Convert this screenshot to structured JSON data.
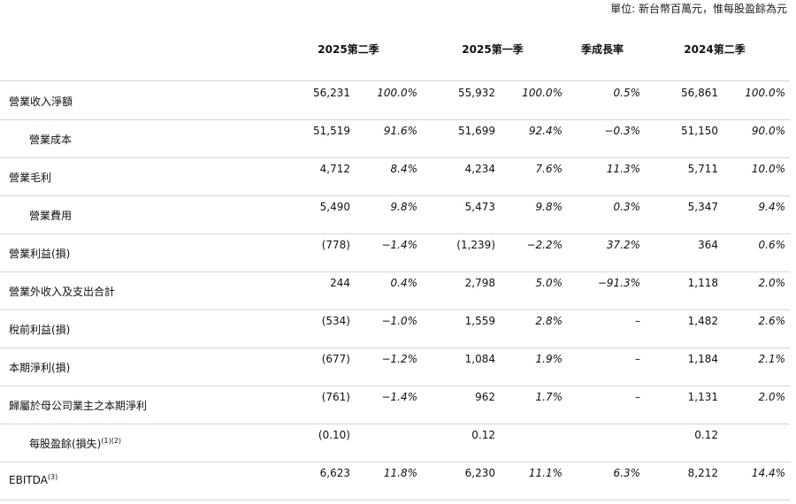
{
  "unit_note": "單位: 新台幣百萬元，惟每股盈餘為元",
  "columns": {
    "q2_2025": "2025第二季",
    "q1_2025": "2025第一季",
    "qoq": "季成長率",
    "q2_2024": "2024第二季"
  },
  "rows": [
    {
      "label": "營業收入淨額",
      "sup": "",
      "indent": 0,
      "q2_2025": "56,231",
      "q2_2025_pct": "100.0%",
      "q1_2025": "55,932",
      "q1_2025_pct": "100.0%",
      "qoq": "0.5%",
      "q2_2024": "56,861",
      "q2_2024_pct": "100.0%"
    },
    {
      "label": "營業成本",
      "sup": "",
      "indent": 1,
      "q2_2025": "51,519",
      "q2_2025_pct": "91.6%",
      "q1_2025": "51,699",
      "q1_2025_pct": "92.4%",
      "qoq": "−0.3%",
      "q2_2024": "51,150",
      "q2_2024_pct": "90.0%"
    },
    {
      "label": "營業毛利",
      "sup": "",
      "indent": 0,
      "q2_2025": "4,712",
      "q2_2025_pct": "8.4%",
      "q1_2025": "4,234",
      "q1_2025_pct": "7.6%",
      "qoq": "11.3%",
      "q2_2024": "5,711",
      "q2_2024_pct": "10.0%"
    },
    {
      "label": "營業費用",
      "sup": "",
      "indent": 1,
      "q2_2025": "5,490",
      "q2_2025_pct": "9.8%",
      "q1_2025": "5,473",
      "q1_2025_pct": "9.8%",
      "qoq": "0.3%",
      "q2_2024": "5,347",
      "q2_2024_pct": "9.4%"
    },
    {
      "label": "營業利益(損)",
      "sup": "",
      "indent": 0,
      "q2_2025": "(778)",
      "q2_2025_pct": "−1.4%",
      "q1_2025": "(1,239)",
      "q1_2025_pct": "−2.2%",
      "qoq": "37.2%",
      "q2_2024": "364",
      "q2_2024_pct": "0.6%"
    },
    {
      "label": "營業外收入及支出合計",
      "sup": "",
      "indent": 0,
      "q2_2025": "244",
      "q2_2025_pct": "0.4%",
      "q1_2025": "2,798",
      "q1_2025_pct": "5.0%",
      "qoq": "−91.3%",
      "q2_2024": "1,118",
      "q2_2024_pct": "2.0%"
    },
    {
      "label": "稅前利益(損)",
      "sup": "",
      "indent": 0,
      "q2_2025": "(534)",
      "q2_2025_pct": "−1.0%",
      "q1_2025": "1,559",
      "q1_2025_pct": "2.8%",
      "qoq": "–",
      "q2_2024": "1,482",
      "q2_2024_pct": "2.6%"
    },
    {
      "label": "本期淨利(損)",
      "sup": "",
      "indent": 0,
      "q2_2025": "(677)",
      "q2_2025_pct": "−1.2%",
      "q1_2025": "1,084",
      "q1_2025_pct": "1.9%",
      "qoq": "–",
      "q2_2024": "1,184",
      "q2_2024_pct": "2.1%"
    },
    {
      "label": "歸屬於母公司業主之本期淨利",
      "sup": "",
      "indent": 0,
      "q2_2025": "(761)",
      "q2_2025_pct": "−1.4%",
      "q1_2025": "962",
      "q1_2025_pct": "1.7%",
      "qoq": "–",
      "q2_2024": "1,131",
      "q2_2024_pct": "2.0%"
    },
    {
      "label": "每股盈餘(損失)",
      "sup": "(1)(2)",
      "indent": 1,
      "q2_2025": "(0.10)",
      "q2_2025_pct": "",
      "q1_2025": "0.12",
      "q1_2025_pct": "",
      "qoq": "",
      "q2_2024": "0.12",
      "q2_2024_pct": ""
    },
    {
      "label": "EBITDA",
      "sup": "(3)",
      "indent": 0,
      "q2_2025": "6,623",
      "q2_2025_pct": "11.8%",
      "q1_2025": "6,230",
      "q1_2025_pct": "11.1%",
      "qoq": "6.3%",
      "q2_2024": "8,212",
      "q2_2024_pct": "14.4%"
    }
  ]
}
